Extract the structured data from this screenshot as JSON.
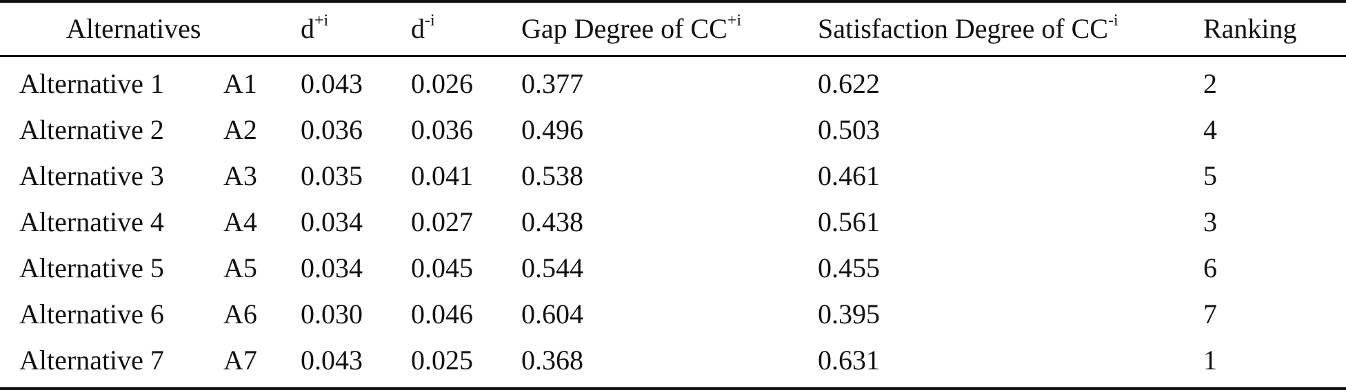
{
  "table": {
    "headers": {
      "alternatives": "Alternatives",
      "d_plus": {
        "base": "d",
        "sup": "+i"
      },
      "d_minus": {
        "base": "d",
        "sup": "-i"
      },
      "gap": {
        "base": "Gap Degree of CC",
        "sup": "+i"
      },
      "satisfaction": {
        "base": "Satisfaction Degree of CC",
        "sup": "-i"
      },
      "ranking": "Ranking"
    },
    "rows": [
      {
        "name": "Alternative 1",
        "code": "A1",
        "d_plus": "0.043",
        "d_minus": "0.026",
        "gap": "0.377",
        "satisfaction": "0.622",
        "ranking": "2"
      },
      {
        "name": "Alternative 2",
        "code": "A2",
        "d_plus": "0.036",
        "d_minus": "0.036",
        "gap": "0.496",
        "satisfaction": "0.503",
        "ranking": "4"
      },
      {
        "name": "Alternative 3",
        "code": "A3",
        "d_plus": "0.035",
        "d_minus": "0.041",
        "gap": "0.538",
        "satisfaction": "0.461",
        "ranking": "5"
      },
      {
        "name": "Alternative 4",
        "code": "A4",
        "d_plus": "0.034",
        "d_minus": "0.027",
        "gap": "0.438",
        "satisfaction": "0.561",
        "ranking": "3"
      },
      {
        "name": "Alternative 5",
        "code": "A5",
        "d_plus": "0.034",
        "d_minus": "0.045",
        "gap": "0.544",
        "satisfaction": "0.455",
        "ranking": "6"
      },
      {
        "name": "Alternative 6",
        "code": "A6",
        "d_plus": "0.030",
        "d_minus": "0.046",
        "gap": "0.604",
        "satisfaction": "0.395",
        "ranking": "7"
      },
      {
        "name": "Alternative 7",
        "code": "A7",
        "d_plus": "0.043",
        "d_minus": "0.025",
        "gap": "0.368",
        "satisfaction": "0.631",
        "ranking": "1"
      }
    ]
  }
}
